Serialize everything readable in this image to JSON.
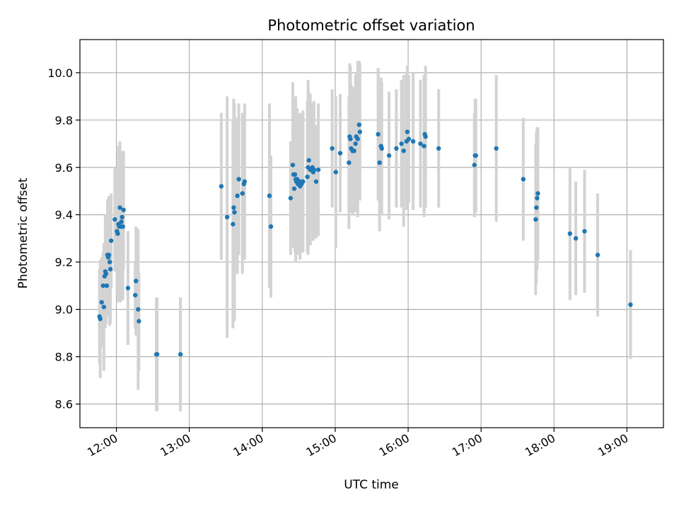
{
  "chart_data": {
    "type": "scatter",
    "title": "Photometric offset variation",
    "xlabel": "UTC time",
    "ylabel": "Photometric offset",
    "x_unit": "minutes since 00:00 UTC",
    "xlim": [
      690,
      1170
    ],
    "ylim": [
      8.5,
      10.14
    ],
    "grid": true,
    "x_ticks": [
      720,
      780,
      840,
      900,
      960,
      1020,
      1080,
      1140
    ],
    "x_tick_labels": [
      "12:00",
      "13:00",
      "14:00",
      "15:00",
      "16:00",
      "17:00",
      "18:00",
      "19:00"
    ],
    "y_ticks": [
      8.6,
      8.8,
      9.0,
      9.2,
      9.4,
      9.6,
      9.8,
      10.0
    ],
    "y_tick_labels": [
      "8.6",
      "8.8",
      "9.0",
      "9.2",
      "9.4",
      "9.6",
      "9.8",
      "10.0"
    ],
    "marker_color": "#1f77b4",
    "errorbar_color": "#d3d3d3",
    "points": [
      {
        "x": 706.1,
        "y": 8.97,
        "err": 0.2
      },
      {
        "x": 706.7,
        "y": 8.96,
        "err": 0.25
      },
      {
        "x": 707.9,
        "y": 9.03,
        "err": 0.19
      },
      {
        "x": 709.1,
        "y": 9.1,
        "err": 0.14
      },
      {
        "x": 709.7,
        "y": 9.01,
        "err": 0.27
      },
      {
        "x": 710.3,
        "y": 9.14,
        "err": 0.1
      },
      {
        "x": 710.9,
        "y": 9.16,
        "err": 0.24
      },
      {
        "x": 711.5,
        "y": 9.15,
        "err": 0.21
      },
      {
        "x": 712.1,
        "y": 9.1,
        "err": 0.13
      },
      {
        "x": 712.7,
        "y": 9.23,
        "err": 0.23
      },
      {
        "x": 713.3,
        "y": 9.22,
        "err": 0.25
      },
      {
        "x": 713.9,
        "y": 9.23,
        "err": 0.25
      },
      {
        "x": 714.5,
        "y": 9.2,
        "err": 0.27
      },
      {
        "x": 715.1,
        "y": 9.17,
        "err": 0.23
      },
      {
        "x": 715.7,
        "y": 9.29,
        "err": 0.2
      },
      {
        "x": 718.7,
        "y": 9.38,
        "err": 0.22
      },
      {
        "x": 720.5,
        "y": 9.33,
        "err": 0.27
      },
      {
        "x": 721.1,
        "y": 9.32,
        "err": 0.21
      },
      {
        "x": 721.7,
        "y": 9.36,
        "err": 0.33
      },
      {
        "x": 722.3,
        "y": 9.35,
        "err": 0.23
      },
      {
        "x": 722.9,
        "y": 9.43,
        "err": 0.28
      },
      {
        "x": 723.5,
        "y": 9.35,
        "err": 0.32
      },
      {
        "x": 724.1,
        "y": 9.37,
        "err": 0.23
      },
      {
        "x": 724.7,
        "y": 9.39,
        "err": 0.27
      },
      {
        "x": 725.3,
        "y": 9.35,
        "err": 0.31
      },
      {
        "x": 725.9,
        "y": 9.42,
        "err": 0.25
      },
      {
        "x": 729.5,
        "y": 9.09,
        "err": 0.24
      },
      {
        "x": 735.5,
        "y": 9.06,
        "err": 0.14
      },
      {
        "x": 736.1,
        "y": 9.12,
        "err": 0.23
      },
      {
        "x": 737.9,
        "y": 9.0,
        "err": 0.34
      },
      {
        "x": 738.5,
        "y": 8.95,
        "err": 0.21
      },
      {
        "x": 752.9,
        "y": 8.81,
        "err": 0.24
      },
      {
        "x": 753.5,
        "y": 8.81,
        "err": 0.24
      },
      {
        "x": 772.7,
        "y": 8.81,
        "err": 0.24
      },
      {
        "x": 806.3,
        "y": 9.52,
        "err": 0.31
      },
      {
        "x": 811.1,
        "y": 9.39,
        "err": 0.51
      },
      {
        "x": 815.9,
        "y": 9.36,
        "err": 0.44
      },
      {
        "x": 816.5,
        "y": 9.43,
        "err": 0.46
      },
      {
        "x": 817.1,
        "y": 9.41,
        "err": 0.46
      },
      {
        "x": 819.5,
        "y": 9.48,
        "err": 0.33
      },
      {
        "x": 820.7,
        "y": 9.55,
        "err": 0.32
      },
      {
        "x": 823.7,
        "y": 9.49,
        "err": 0.34
      },
      {
        "x": 824.9,
        "y": 9.53,
        "err": 0.3
      },
      {
        "x": 825.5,
        "y": 9.54,
        "err": 0.33
      },
      {
        "x": 845.9,
        "y": 9.48,
        "err": 0.39
      },
      {
        "x": 847.1,
        "y": 9.35,
        "err": 0.3
      },
      {
        "x": 863.3,
        "y": 9.47,
        "err": 0.24
      },
      {
        "x": 865.1,
        "y": 9.61,
        "err": 0.35
      },
      {
        "x": 865.7,
        "y": 9.57,
        "err": 0.28
      },
      {
        "x": 866.3,
        "y": 9.51,
        "err": 0.23
      },
      {
        "x": 866.9,
        "y": 9.57,
        "err": 0.33
      },
      {
        "x": 867.5,
        "y": 9.55,
        "err": 0.35
      },
      {
        "x": 868.1,
        "y": 9.54,
        "err": 0.28
      },
      {
        "x": 868.7,
        "y": 9.55,
        "err": 0.3
      },
      {
        "x": 869.3,
        "y": 9.53,
        "err": 0.3
      },
      {
        "x": 870.5,
        "y": 9.54,
        "err": 0.28
      },
      {
        "x": 871.1,
        "y": 9.52,
        "err": 0.31
      },
      {
        "x": 872.3,
        "y": 9.53,
        "err": 0.29
      },
      {
        "x": 872.9,
        "y": 9.54,
        "err": 0.22
      },
      {
        "x": 873.5,
        "y": 9.54,
        "err": 0.3
      },
      {
        "x": 877.1,
        "y": 9.56,
        "err": 0.32
      },
      {
        "x": 877.7,
        "y": 9.6,
        "err": 0.37
      },
      {
        "x": 878.3,
        "y": 9.63,
        "err": 0.29
      },
      {
        "x": 879.5,
        "y": 9.59,
        "err": 0.32
      },
      {
        "x": 880.7,
        "y": 9.59,
        "err": 0.25
      },
      {
        "x": 881.3,
        "y": 9.6,
        "err": 0.27
      },
      {
        "x": 881.9,
        "y": 9.58,
        "err": 0.29
      },
      {
        "x": 882.5,
        "y": 9.59,
        "err": 0.29
      },
      {
        "x": 884.3,
        "y": 9.54,
        "err": 0.24
      },
      {
        "x": 886.1,
        "y": 9.59,
        "err": 0.28
      },
      {
        "x": 897.5,
        "y": 9.68,
        "err": 0.25
      },
      {
        "x": 900.5,
        "y": 9.58,
        "err": 0.32
      },
      {
        "x": 904.1,
        "y": 9.66,
        "err": 0.25
      },
      {
        "x": 911.3,
        "y": 9.62,
        "err": 0.28
      },
      {
        "x": 911.9,
        "y": 9.73,
        "err": 0.31
      },
      {
        "x": 912.5,
        "y": 9.72,
        "err": 0.31
      },
      {
        "x": 913.1,
        "y": 9.68,
        "err": 0.27
      },
      {
        "x": 914.3,
        "y": 9.67,
        "err": 0.27
      },
      {
        "x": 915.5,
        "y": 9.67,
        "err": 0.26
      },
      {
        "x": 916.7,
        "y": 9.7,
        "err": 0.29
      },
      {
        "x": 917.3,
        "y": 9.73,
        "err": 0.27
      },
      {
        "x": 918.5,
        "y": 9.72,
        "err": 0.33
      },
      {
        "x": 919.7,
        "y": 9.78,
        "err": 0.27
      },
      {
        "x": 920.3,
        "y": 9.75,
        "err": 0.29
      },
      {
        "x": 935.3,
        "y": 9.74,
        "err": 0.28
      },
      {
        "x": 936.5,
        "y": 9.62,
        "err": 0.29
      },
      {
        "x": 937.7,
        "y": 9.69,
        "err": 0.29
      },
      {
        "x": 938.3,
        "y": 9.68,
        "err": 0.28
      },
      {
        "x": 944.3,
        "y": 9.65,
        "err": 0.27
      },
      {
        "x": 950.3,
        "y": 9.68,
        "err": 0.25
      },
      {
        "x": 954.5,
        "y": 9.7,
        "err": 0.27
      },
      {
        "x": 956.3,
        "y": 9.67,
        "err": 0.32
      },
      {
        "x": 958.7,
        "y": 9.71,
        "err": 0.29
      },
      {
        "x": 959.3,
        "y": 9.75,
        "err": 0.28
      },
      {
        "x": 960.5,
        "y": 9.72,
        "err": 0.27
      },
      {
        "x": 964.1,
        "y": 9.71,
        "err": 0.29
      },
      {
        "x": 970.1,
        "y": 9.7,
        "err": 0.27
      },
      {
        "x": 973.1,
        "y": 9.69,
        "err": 0.3
      },
      {
        "x": 973.7,
        "y": 9.74,
        "err": 0.25
      },
      {
        "x": 974.3,
        "y": 9.73,
        "err": 0.3
      },
      {
        "x": 985.1,
        "y": 9.68,
        "err": 0.25
      },
      {
        "x": 1014.5,
        "y": 9.61,
        "err": 0.22
      },
      {
        "x": 1015.1,
        "y": 9.65,
        "err": 0.24
      },
      {
        "x": 1015.7,
        "y": 9.65,
        "err": 0.24
      },
      {
        "x": 1032.5,
        "y": 9.68,
        "err": 0.31
      },
      {
        "x": 1054.7,
        "y": 9.55,
        "err": 0.26
      },
      {
        "x": 1064.9,
        "y": 9.38,
        "err": 0.32
      },
      {
        "x": 1065.5,
        "y": 9.43,
        "err": 0.32
      },
      {
        "x": 1066.1,
        "y": 9.47,
        "err": 0.3
      },
      {
        "x": 1066.7,
        "y": 9.49,
        "err": 0.28
      },
      {
        "x": 1093.1,
        "y": 9.32,
        "err": 0.28
      },
      {
        "x": 1097.9,
        "y": 9.3,
        "err": 0.24
      },
      {
        "x": 1105.1,
        "y": 9.33,
        "err": 0.26
      },
      {
        "x": 1115.9,
        "y": 9.23,
        "err": 0.26
      },
      {
        "x": 1142.9,
        "y": 9.02,
        "err": 0.23
      }
    ]
  }
}
